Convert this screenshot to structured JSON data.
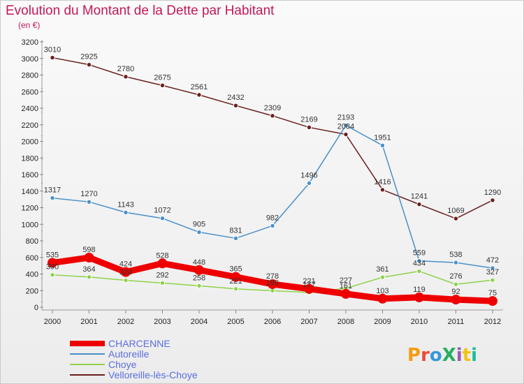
{
  "title": "Evolution du Montant de la Dette par Habitant",
  "subtitle": "(en €)",
  "logo": "ProXiti",
  "chart_data": {
    "type": "line",
    "x": [
      2000,
      2001,
      2002,
      2003,
      2004,
      2005,
      2006,
      2007,
      2008,
      2009,
      2010,
      2011,
      2012
    ],
    "ylim": [
      0,
      3200
    ],
    "yticks": [
      0,
      200,
      400,
      600,
      800,
      1000,
      1200,
      1400,
      1600,
      1800,
      2000,
      2200,
      2400,
      2600,
      2800,
      3000,
      3200
    ],
    "grid": false,
    "legend_position": "bottom-left",
    "series": [
      {
        "name": "CHARCENNE",
        "color": "#ee0000",
        "values": [
          535,
          598,
          424,
          528,
          448,
          365,
          278,
          221,
          161,
          103,
          119,
          92,
          75
        ]
      },
      {
        "name": "Autoreille",
        "color": "#4a90c8",
        "values": [
          1317,
          1270,
          1143,
          1072,
          905,
          831,
          982,
          1496,
          2193,
          1951,
          559,
          538,
          472
        ]
      },
      {
        "name": "Choye",
        "color": "#8ed24a",
        "values": [
          390,
          364,
          324,
          292,
          258,
          221,
          199,
          177,
          227,
          361,
          434,
          276,
          327
        ]
      },
      {
        "name": "Velloreille-lès-Choye",
        "color": "#6b1e1e",
        "values": [
          3010,
          2925,
          2780,
          2675,
          2561,
          2432,
          2309,
          2169,
          2084,
          1416,
          1241,
          1069,
          1290
        ]
      }
    ]
  }
}
